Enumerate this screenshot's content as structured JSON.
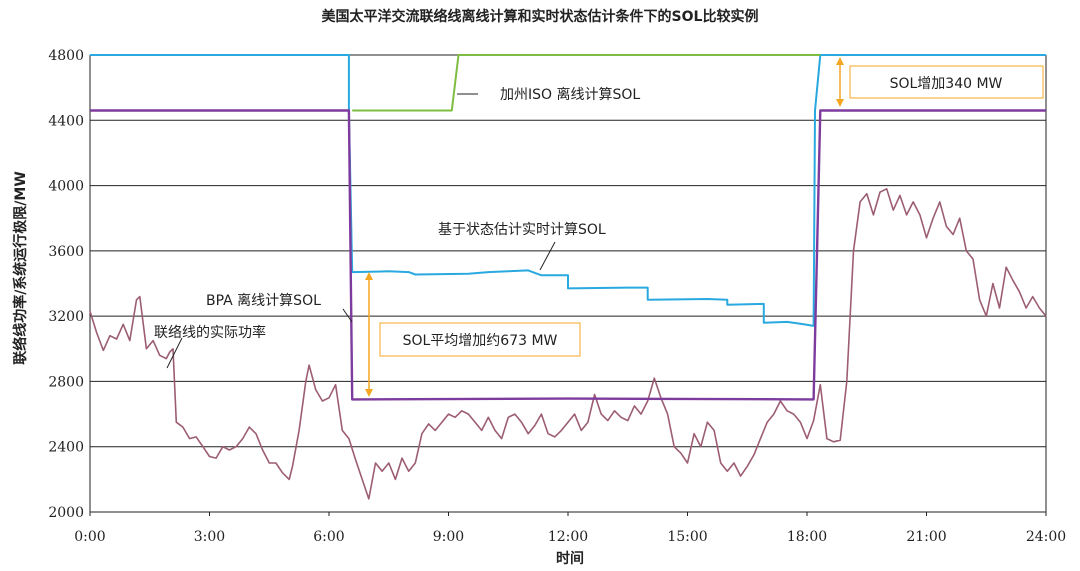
{
  "chart_data": {
    "type": "line",
    "title": "美国太平洋交流联络线离线计算和实时状态估计条件下的SOL比较实例",
    "xlabel": "时间",
    "ylabel": "联络线功率/系统运行极限/MW",
    "xlim": [
      "0:00",
      "24:00"
    ],
    "ylim": [
      2000,
      4800
    ],
    "x_ticks": [
      "0:00",
      "3:00",
      "6:00",
      "9:00",
      "12:00",
      "15:00",
      "18:00",
      "21:00",
      "24:00"
    ],
    "y_ticks": [
      "2000",
      "2400",
      "2800",
      "3200",
      "3600",
      "4000",
      "4400",
      "4800"
    ],
    "grid": "horizontal",
    "colors": {
      "realtime_sol": "#29a9df",
      "caiso_sol": "#7dbd42",
      "bpa_sol": "#7e3b9e",
      "actual_flow": "#9c5d73",
      "annotation": "#f5a623"
    },
    "series": [
      {
        "name": "基于状态估计实时计算SOL",
        "key": "realtime_sol",
        "points": [
          [
            "0:00",
            4800
          ],
          [
            "6:30",
            4800
          ],
          [
            "6:30",
            4460
          ],
          [
            "6:35",
            3470
          ],
          [
            "7:30",
            3475
          ],
          [
            "8:00",
            3470
          ],
          [
            "8:10",
            3455
          ],
          [
            "9:30",
            3460
          ],
          [
            "10:00",
            3470
          ],
          [
            "10:30",
            3475
          ],
          [
            "11:00",
            3480
          ],
          [
            "11:20",
            3450
          ],
          [
            "12:00",
            3450
          ],
          [
            "12:00",
            3370
          ],
          [
            "13:30",
            3375
          ],
          [
            "14:00",
            3375
          ],
          [
            "14:00",
            3300
          ],
          [
            "15:30",
            3305
          ],
          [
            "16:00",
            3300
          ],
          [
            "16:00",
            3270
          ],
          [
            "16:55",
            3275
          ],
          [
            "16:55",
            3160
          ],
          [
            "17:30",
            3165
          ],
          [
            "17:55",
            3150
          ],
          [
            "18:10",
            3140
          ],
          [
            "18:12",
            4460
          ],
          [
            "18:20",
            4800
          ],
          [
            "24:00",
            4800
          ]
        ]
      },
      {
        "name": "加州ISO 离线计算SOL",
        "key": "caiso_sol",
        "points": [
          [
            "6:35",
            4460
          ],
          [
            "7:30",
            4460
          ],
          [
            "9:05",
            4460
          ],
          [
            "9:15",
            4800
          ],
          [
            "18:20",
            4800
          ]
        ]
      },
      {
        "name": "BPA 离线计算SOL",
        "key": "bpa_sol",
        "points": [
          [
            "0:00",
            4460
          ],
          [
            "6:30",
            4460
          ],
          [
            "6:35",
            2690
          ],
          [
            "12:00",
            2695
          ],
          [
            "18:10",
            2690
          ],
          [
            "18:20",
            4460
          ],
          [
            "24:00",
            4460
          ]
        ]
      },
      {
        "name": "联络线的实际功率",
        "key": "actual_flow",
        "points": [
          [
            "0:00",
            3230
          ],
          [
            "0:10",
            3100
          ],
          [
            "0:20",
            2990
          ],
          [
            "0:30",
            3080
          ],
          [
            "0:40",
            3060
          ],
          [
            "0:50",
            3150
          ],
          [
            "1:00",
            3050
          ],
          [
            "1:10",
            3300
          ],
          [
            "1:15",
            3320
          ],
          [
            "1:25",
            3000
          ],
          [
            "1:35",
            3050
          ],
          [
            "1:45",
            2960
          ],
          [
            "1:55",
            2940
          ],
          [
            "2:00",
            2980
          ],
          [
            "2:05",
            3000
          ],
          [
            "2:10",
            2550
          ],
          [
            "2:20",
            2520
          ],
          [
            "2:30",
            2450
          ],
          [
            "2:40",
            2460
          ],
          [
            "2:50",
            2400
          ],
          [
            "3:00",
            2340
          ],
          [
            "3:10",
            2330
          ],
          [
            "3:20",
            2400
          ],
          [
            "3:30",
            2380
          ],
          [
            "3:40",
            2400
          ],
          [
            "3:50",
            2450
          ],
          [
            "4:00",
            2520
          ],
          [
            "4:10",
            2480
          ],
          [
            "4:20",
            2380
          ],
          [
            "4:30",
            2300
          ],
          [
            "4:40",
            2300
          ],
          [
            "4:50",
            2240
          ],
          [
            "5:00",
            2200
          ],
          [
            "5:05",
            2280
          ],
          [
            "5:15",
            2500
          ],
          [
            "5:25",
            2800
          ],
          [
            "5:30",
            2900
          ],
          [
            "5:40",
            2750
          ],
          [
            "5:50",
            2680
          ],
          [
            "6:00",
            2700
          ],
          [
            "6:10",
            2780
          ],
          [
            "6:20",
            2500
          ],
          [
            "6:30",
            2450
          ],
          [
            "6:40",
            2320
          ],
          [
            "6:50",
            2200
          ],
          [
            "7:00",
            2080
          ],
          [
            "7:10",
            2300
          ],
          [
            "7:20",
            2250
          ],
          [
            "7:30",
            2300
          ],
          [
            "7:40",
            2200
          ],
          [
            "7:50",
            2330
          ],
          [
            "8:00",
            2250
          ],
          [
            "8:10",
            2300
          ],
          [
            "8:20",
            2480
          ],
          [
            "8:30",
            2540
          ],
          [
            "8:40",
            2500
          ],
          [
            "8:50",
            2550
          ],
          [
            "9:00",
            2600
          ],
          [
            "9:10",
            2580
          ],
          [
            "9:20",
            2620
          ],
          [
            "9:30",
            2600
          ],
          [
            "9:40",
            2550
          ],
          [
            "9:50",
            2500
          ],
          [
            "10:00",
            2580
          ],
          [
            "10:10",
            2500
          ],
          [
            "10:20",
            2450
          ],
          [
            "10:30",
            2580
          ],
          [
            "10:40",
            2600
          ],
          [
            "10:50",
            2550
          ],
          [
            "11:00",
            2480
          ],
          [
            "11:10",
            2530
          ],
          [
            "11:20",
            2600
          ],
          [
            "11:30",
            2480
          ],
          [
            "11:40",
            2460
          ],
          [
            "11:50",
            2500
          ],
          [
            "12:00",
            2550
          ],
          [
            "12:10",
            2600
          ],
          [
            "12:20",
            2500
          ],
          [
            "12:30",
            2550
          ],
          [
            "12:40",
            2720
          ],
          [
            "12:50",
            2600
          ],
          [
            "13:00",
            2560
          ],
          [
            "13:10",
            2620
          ],
          [
            "13:20",
            2580
          ],
          [
            "13:30",
            2560
          ],
          [
            "13:40",
            2650
          ],
          [
            "13:50",
            2600
          ],
          [
            "14:00",
            2680
          ],
          [
            "14:10",
            2820
          ],
          [
            "14:20",
            2700
          ],
          [
            "14:30",
            2600
          ],
          [
            "14:40",
            2400
          ],
          [
            "14:50",
            2360
          ],
          [
            "15:00",
            2300
          ],
          [
            "15:10",
            2480
          ],
          [
            "15:20",
            2400
          ],
          [
            "15:30",
            2550
          ],
          [
            "15:40",
            2500
          ],
          [
            "15:50",
            2300
          ],
          [
            "16:00",
            2250
          ],
          [
            "16:10",
            2300
          ],
          [
            "16:20",
            2220
          ],
          [
            "16:30",
            2280
          ],
          [
            "16:40",
            2350
          ],
          [
            "16:50",
            2450
          ],
          [
            "17:00",
            2550
          ],
          [
            "17:10",
            2600
          ],
          [
            "17:20",
            2680
          ],
          [
            "17:30",
            2620
          ],
          [
            "17:40",
            2600
          ],
          [
            "17:50",
            2550
          ],
          [
            "18:00",
            2450
          ],
          [
            "18:10",
            2560
          ],
          [
            "18:20",
            2780
          ],
          [
            "18:30",
            2450
          ],
          [
            "18:40",
            2430
          ],
          [
            "18:50",
            2440
          ],
          [
            "19:00",
            2800
          ],
          [
            "19:10",
            3600
          ],
          [
            "19:20",
            3900
          ],
          [
            "19:30",
            3950
          ],
          [
            "19:40",
            3820
          ],
          [
            "19:50",
            3960
          ],
          [
            "20:00",
            3980
          ],
          [
            "20:10",
            3850
          ],
          [
            "20:20",
            3940
          ],
          [
            "20:30",
            3820
          ],
          [
            "20:40",
            3900
          ],
          [
            "20:50",
            3820
          ],
          [
            "21:00",
            3680
          ],
          [
            "21:10",
            3800
          ],
          [
            "21:20",
            3900
          ],
          [
            "21:30",
            3750
          ],
          [
            "21:40",
            3700
          ],
          [
            "21:50",
            3800
          ],
          [
            "22:00",
            3600
          ],
          [
            "22:10",
            3550
          ],
          [
            "22:20",
            3300
          ],
          [
            "22:30",
            3200
          ],
          [
            "22:40",
            3400
          ],
          [
            "22:50",
            3250
          ],
          [
            "23:00",
            3500
          ],
          [
            "23:10",
            3420
          ],
          [
            "23:20",
            3350
          ],
          [
            "23:30",
            3250
          ],
          [
            "23:40",
            3320
          ],
          [
            "23:50",
            3250
          ],
          [
            "24:00",
            3200
          ]
        ]
      }
    ],
    "annotations": {
      "caiso_label": "加州ISO 离线计算SOL",
      "realtime_label": "基于状态估计实时计算SOL",
      "bpa_label": "BPA 离线计算SOL",
      "actual_label": "联络线的实际功率",
      "avg_increase": "SOL平均增加约673 MW",
      "increase_340": "SOL增加340 MW"
    }
  }
}
